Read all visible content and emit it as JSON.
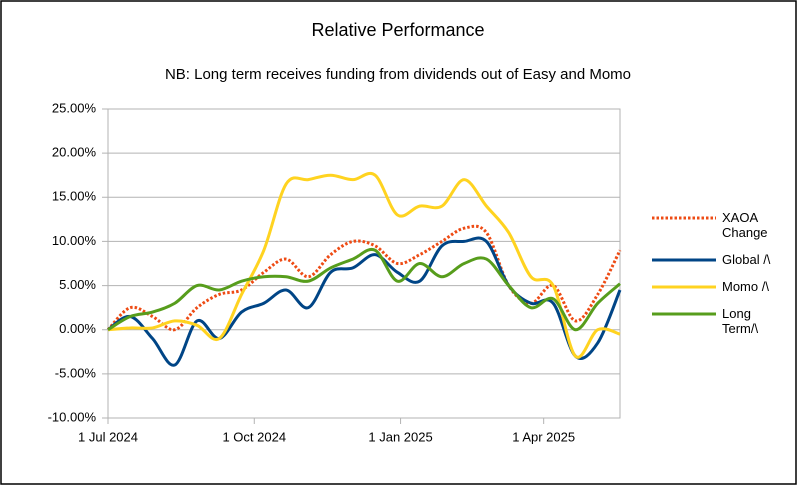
{
  "chart_data": {
    "type": "line",
    "title": "Relative Performance",
    "subtitle": "NB: Long term receives funding from dividends out of Easy and Momo",
    "x": [
      "2024-07-01",
      "2024-07-15",
      "2024-07-29",
      "2024-08-12",
      "2024-08-26",
      "2024-09-09",
      "2024-09-23",
      "2024-10-07",
      "2024-10-21",
      "2024-11-04",
      "2024-11-18",
      "2024-12-02",
      "2024-12-16",
      "2024-12-30",
      "2025-01-13",
      "2025-01-27",
      "2025-02-10",
      "2025-02-24",
      "2025-03-10",
      "2025-03-24",
      "2025-04-07",
      "2025-04-21",
      "2025-05-05",
      "2025-05-19"
    ],
    "series": [
      {
        "name": "XAOA Change",
        "color": "#ee4b14",
        "dash": "dotted",
        "values": [
          0,
          2.5,
          1.5,
          0,
          2.5,
          4,
          4.5,
          6.5,
          8,
          6,
          8.5,
          10,
          9.5,
          7.5,
          8.5,
          10,
          11.5,
          11,
          5,
          3,
          5,
          1,
          4,
          9
        ]
      },
      {
        "name": "Global /\\",
        "color": "#004586",
        "values": [
          0,
          1.5,
          -1,
          -4,
          1,
          -1,
          2,
          3,
          4.5,
          2.5,
          6.5,
          7,
          8.5,
          6.5,
          5.5,
          9.5,
          10,
          10,
          5,
          3,
          3,
          -3,
          -1.5,
          4.5
        ]
      },
      {
        "name": "Momo /\\",
        "color": "#ffd320",
        "values": [
          0,
          0.2,
          0.2,
          1,
          0.5,
          -1,
          4,
          9,
          16.5,
          17,
          17.5,
          17,
          17.5,
          13,
          14,
          14,
          17,
          14,
          11,
          6,
          5,
          -3,
          0,
          -0.5
        ]
      },
      {
        "name": "Long Term/\\",
        "color": "#579d1c",
        "values": [
          0,
          1.5,
          2,
          3,
          5,
          4.5,
          5.5,
          6,
          6,
          5.5,
          7,
          8,
          9,
          5.5,
          7.5,
          6,
          7.5,
          8,
          5,
          2.5,
          3.5,
          0,
          3,
          5.2
        ]
      }
    ],
    "xlim": [
      "2024-07-01",
      "2025-05-19"
    ],
    "xticks": [
      {
        "value": "2024-07-01",
        "label": "1 Jul 2024"
      },
      {
        "value": "2024-10-01",
        "label": "1 Oct 2024"
      },
      {
        "value": "2025-01-01",
        "label": "1 Jan 2025"
      },
      {
        "value": "2025-04-01",
        "label": "1 Apr 2025"
      }
    ],
    "ylim": [
      -10,
      25
    ],
    "yticks": [
      {
        "value": -10,
        "label": "-10.00%"
      },
      {
        "value": -5,
        "label": "-5.00%"
      },
      {
        "value": 0,
        "label": "0.00%"
      },
      {
        "value": 5,
        "label": "5.00%"
      },
      {
        "value": 10,
        "label": "10.00%"
      },
      {
        "value": 15,
        "label": "15.00%"
      },
      {
        "value": 20,
        "label": "20.00%"
      },
      {
        "value": 25,
        "label": "25.00%"
      }
    ],
    "grid": true,
    "legend": "right"
  }
}
